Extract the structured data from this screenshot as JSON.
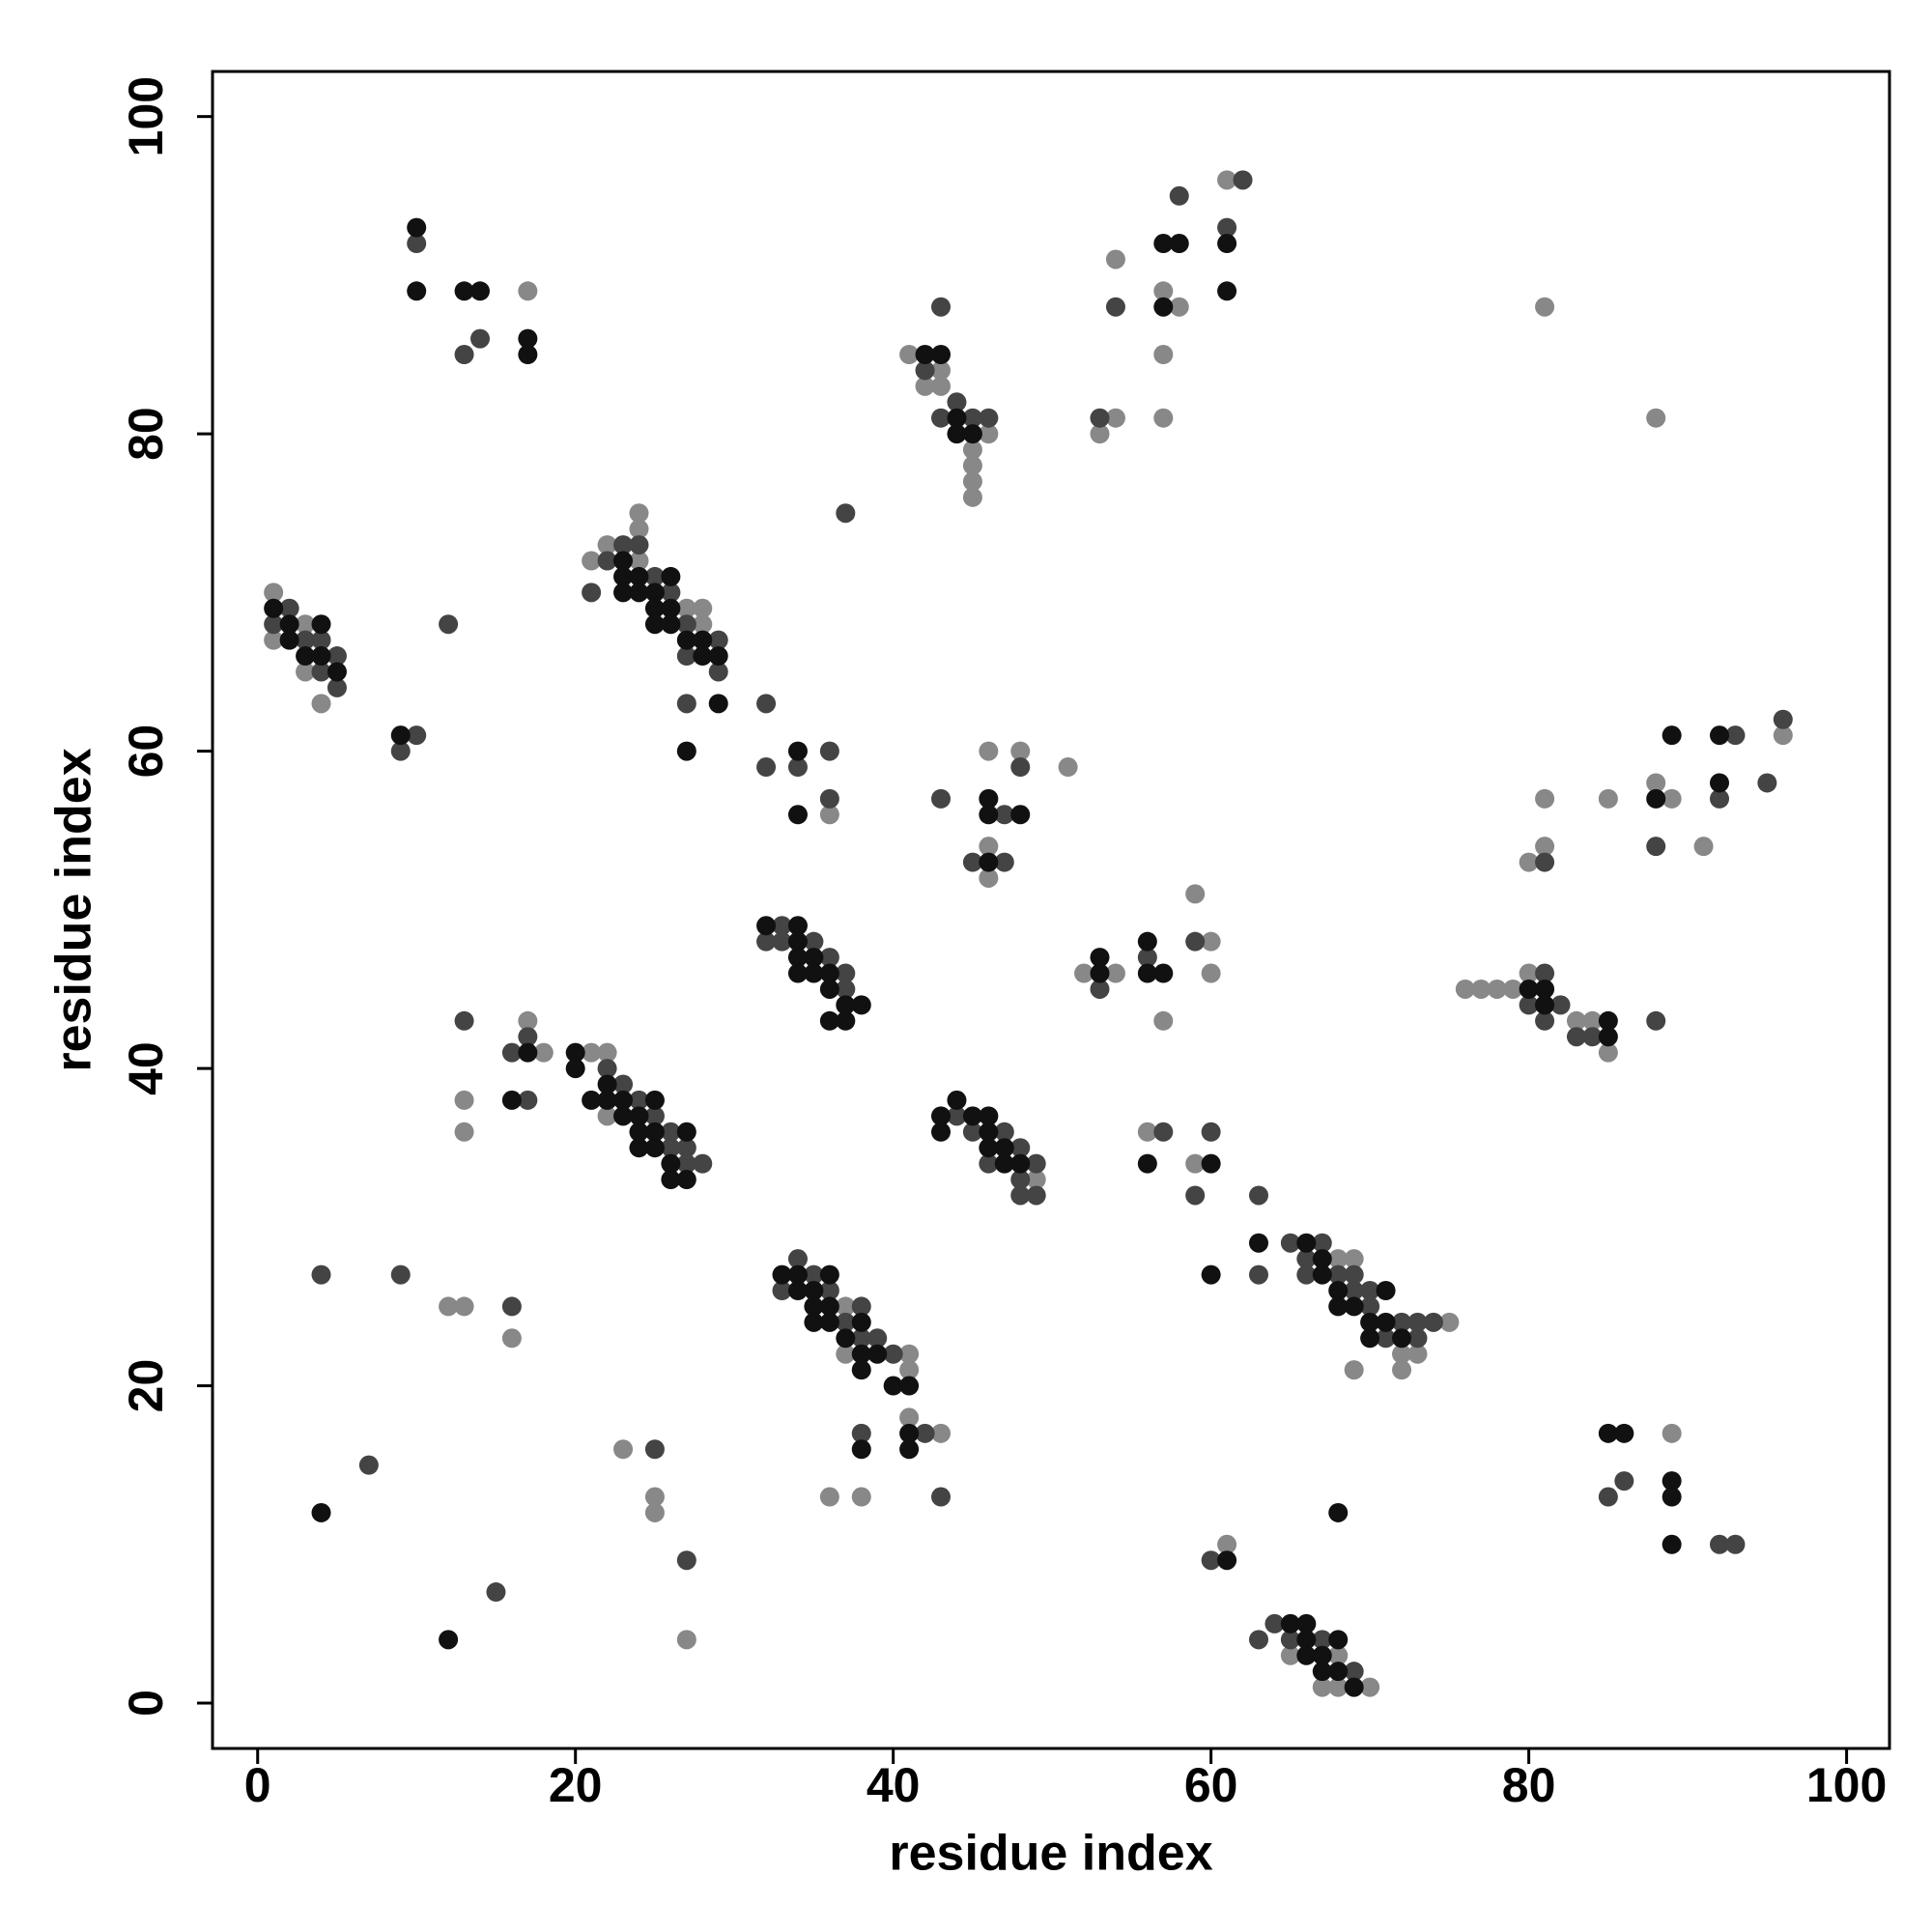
{
  "chart_data": {
    "type": "scatter",
    "xlabel": "residue index",
    "ylabel": "residue index",
    "xlim": [
      -2.84,
      102.7
    ],
    "ylim": [
      -2.86,
      102.84
    ],
    "xticks": [
      0,
      20,
      40,
      60,
      80,
      100
    ],
    "yticks": [
      0,
      20,
      40,
      60,
      80,
      100
    ],
    "series": [
      {
        "color": "#888888",
        "x": [
          17,
          43,
          42,
          43,
          46,
          45,
          45,
          45,
          45,
          41,
          61,
          54,
          57,
          58,
          57,
          54,
          57,
          53,
          81,
          88,
          1,
          3,
          1,
          3,
          4,
          24,
          24,
          22,
          21,
          24,
          27,
          28,
          28,
          36,
          46,
          48,
          51,
          46,
          46,
          96,
          88,
          81,
          85,
          89,
          81,
          91,
          80,
          52,
          54,
          57,
          59,
          60,
          60,
          76,
          77,
          78,
          79,
          80,
          83,
          84,
          85,
          17,
          18,
          13,
          13,
          21,
          22,
          22,
          49,
          56,
          59,
          68,
          69,
          75,
          72,
          73,
          69,
          72,
          37,
          37,
          41,
          41,
          41,
          43,
          36,
          38,
          12,
          13,
          16,
          23,
          25,
          25,
          27,
          89,
          61,
          65,
          68,
          67,
          68,
          70
        ],
        "y": [
          89,
          84,
          83,
          83,
          80,
          79,
          78,
          77,
          76,
          85,
          96,
          91,
          89,
          88,
          85,
          81,
          81,
          80,
          88,
          81,
          70,
          68,
          67,
          65,
          63,
          75,
          74,
          73,
          72,
          72,
          69,
          69,
          68,
          56,
          60,
          60,
          59,
          54,
          52,
          61,
          58,
          57,
          57,
          57,
          54,
          54,
          53,
          46,
          46,
          43,
          51,
          48,
          46,
          45,
          45,
          45,
          45,
          46,
          43,
          43,
          41,
          43,
          41,
          38,
          36,
          41,
          41,
          37,
          33,
          36,
          34,
          28,
          28,
          24,
          22,
          22,
          21,
          21,
          25,
          22,
          22,
          21,
          18,
          17,
          13,
          13,
          25,
          25,
          23,
          16,
          13,
          12,
          4,
          17,
          10,
          3,
          3,
          1,
          1,
          1
        ]
      },
      {
        "color": "#444444",
        "x": [
          10,
          13,
          14,
          43,
          42,
          44,
          43,
          45,
          46,
          62,
          58,
          61,
          54,
          53,
          37,
          2,
          1,
          3,
          4,
          5,
          4,
          5,
          12,
          10,
          9,
          23,
          24,
          22,
          25,
          21,
          26,
          27,
          29,
          27,
          29,
          27,
          32,
          32,
          34,
          36,
          36,
          43,
          48,
          47,
          45,
          47,
          96,
          93,
          95,
          92,
          88,
          81,
          33,
          32,
          33,
          35,
          36,
          37,
          37,
          53,
          56,
          59,
          81,
          80,
          82,
          81,
          83,
          84,
          88,
          13,
          17,
          16,
          17,
          22,
          23,
          24,
          25,
          26,
          26,
          27,
          27,
          28,
          44,
          45,
          47,
          48,
          46,
          49,
          48,
          48,
          49,
          57,
          60,
          59,
          63,
          65,
          67,
          66,
          66,
          68,
          69,
          69,
          70,
          70,
          72,
          73,
          74,
          71,
          73,
          63,
          34,
          35,
          33,
          36,
          38,
          37,
          38,
          39,
          40,
          42,
          38,
          43,
          4,
          9,
          16,
          7,
          15,
          25,
          27,
          86,
          85,
          92,
          93,
          60,
          64,
          63,
          65,
          67,
          69
        ],
        "y": [
          92,
          85,
          86,
          88,
          84,
          82,
          81,
          81,
          81,
          96,
          95,
          93,
          88,
          81,
          75,
          69,
          68,
          67,
          67,
          66,
          65,
          64,
          68,
          61,
          60,
          73,
          73,
          72,
          71,
          70,
          70,
          68,
          67,
          66,
          65,
          63,
          63,
          59,
          59,
          60,
          57,
          57,
          59,
          56,
          53,
          53,
          62,
          61,
          58,
          57,
          54,
          53,
          49,
          48,
          48,
          48,
          47,
          46,
          45,
          45,
          47,
          48,
          46,
          44,
          44,
          43,
          42,
          42,
          43,
          43,
          42,
          41,
          38,
          40,
          39,
          38,
          37,
          36,
          35,
          35,
          34,
          34,
          37,
          36,
          36,
          35,
          34,
          34,
          33,
          32,
          32,
          36,
          36,
          32,
          32,
          29,
          29,
          28,
          27,
          27,
          27,
          26,
          26,
          25,
          24,
          24,
          24,
          23,
          23,
          27,
          28,
          27,
          26,
          26,
          25,
          24,
          23,
          23,
          22,
          17,
          17,
          13,
          27,
          27,
          25,
          15,
          7,
          16,
          9,
          14,
          13,
          10,
          10,
          9,
          5,
          4,
          4,
          4,
          2
        ]
      },
      {
        "color": "#111111",
        "x": [
          10,
          10,
          13,
          14,
          17,
          17,
          42,
          43,
          44,
          44,
          45,
          57,
          58,
          61,
          61,
          57,
          1,
          2,
          4,
          2,
          3,
          4,
          5,
          9,
          23,
          23,
          24,
          26,
          23,
          24,
          25,
          25,
          26,
          25,
          26,
          27,
          28,
          28,
          29,
          29,
          27,
          34,
          34,
          46,
          46,
          48,
          46,
          89,
          92,
          92,
          88,
          32,
          34,
          34,
          34,
          35,
          34,
          35,
          36,
          36,
          37,
          38,
          36,
          37,
          53,
          53,
          56,
          56,
          57,
          80,
          81,
          81,
          85,
          85,
          17,
          16,
          20,
          20,
          22,
          21,
          22,
          23,
          25,
          23,
          24,
          24,
          25,
          27,
          24,
          25,
          26,
          26,
          27,
          44,
          43,
          45,
          46,
          43,
          46,
          46,
          47,
          47,
          48,
          56,
          60,
          63,
          66,
          67,
          67,
          68,
          71,
          68,
          69,
          70,
          71,
          70,
          72,
          60,
          33,
          34,
          36,
          34,
          35,
          35,
          36,
          35,
          36,
          38,
          37,
          38,
          39,
          38,
          40,
          41,
          41,
          38,
          41,
          4,
          12,
          85,
          86,
          89,
          89,
          89,
          68,
          61,
          65,
          66,
          66,
          68,
          66,
          67,
          67,
          68,
          69
        ],
        "y": [
          93,
          89,
          89,
          89,
          86,
          85,
          85,
          85,
          81,
          80,
          80,
          92,
          92,
          92,
          89,
          88,
          69,
          68,
          68,
          67,
          66,
          66,
          65,
          61,
          72,
          71,
          71,
          71,
          70,
          70,
          70,
          69,
          69,
          68,
          68,
          67,
          67,
          66,
          66,
          63,
          60,
          60,
          56,
          57,
          56,
          56,
          53,
          61,
          61,
          58,
          57,
          49,
          49,
          48,
          47,
          47,
          46,
          46,
          46,
          45,
          44,
          44,
          43,
          43,
          47,
          46,
          48,
          46,
          46,
          45,
          45,
          44,
          43,
          42,
          41,
          38,
          41,
          40,
          39,
          38,
          38,
          38,
          38,
          37,
          37,
          36,
          36,
          36,
          35,
          35,
          34,
          33,
          33,
          38,
          37,
          37,
          37,
          36,
          36,
          35,
          35,
          34,
          34,
          34,
          34,
          29,
          29,
          28,
          27,
          26,
          26,
          25,
          25,
          24,
          24,
          23,
          23,
          27,
          27,
          27,
          27,
          26,
          26,
          25,
          25,
          24,
          24,
          24,
          23,
          22,
          22,
          21,
          20,
          20,
          17,
          16,
          16,
          12,
          4,
          17,
          17,
          14,
          13,
          10,
          12,
          9,
          5,
          5,
          4,
          4,
          3,
          3,
          2,
          2,
          1
        ]
      }
    ]
  }
}
